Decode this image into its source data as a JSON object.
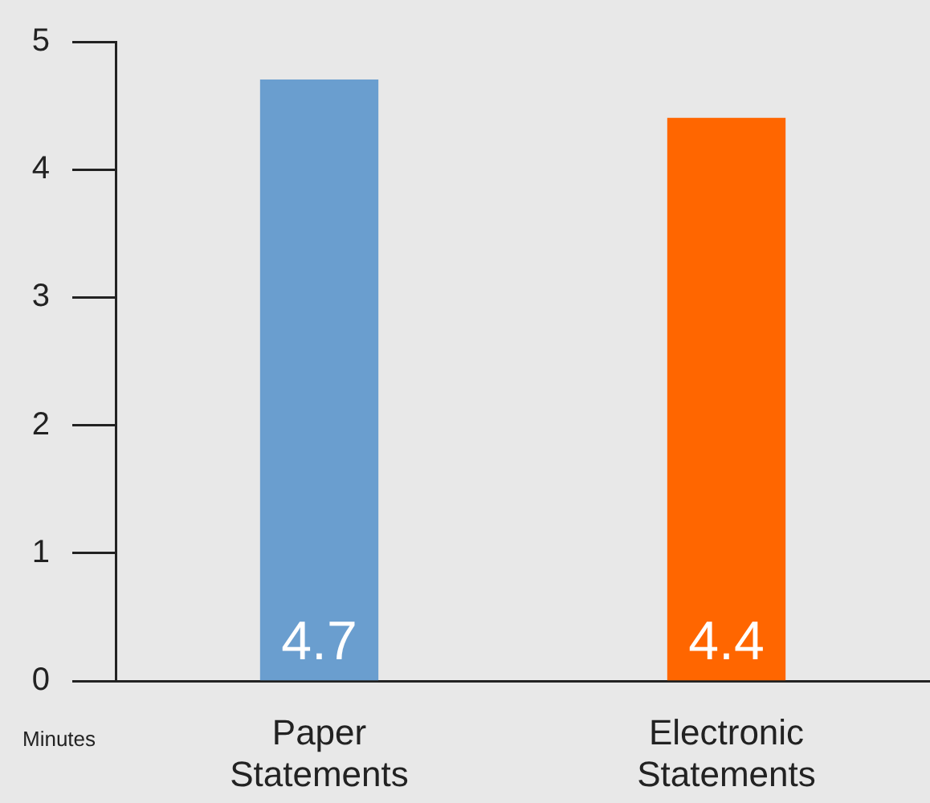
{
  "chart_data": {
    "type": "bar",
    "ylabel": "Minutes",
    "categories": [
      "Paper Statements",
      "Electronic Statements"
    ],
    "values": [
      4.7,
      4.4
    ],
    "colors": [
      "#6a9ecf",
      "#ff6600"
    ],
    "ylim": [
      0,
      5
    ],
    "yticks": [
      0,
      1,
      2,
      3,
      4,
      5
    ],
    "grid": false,
    "legend": false,
    "data_labels": true
  }
}
